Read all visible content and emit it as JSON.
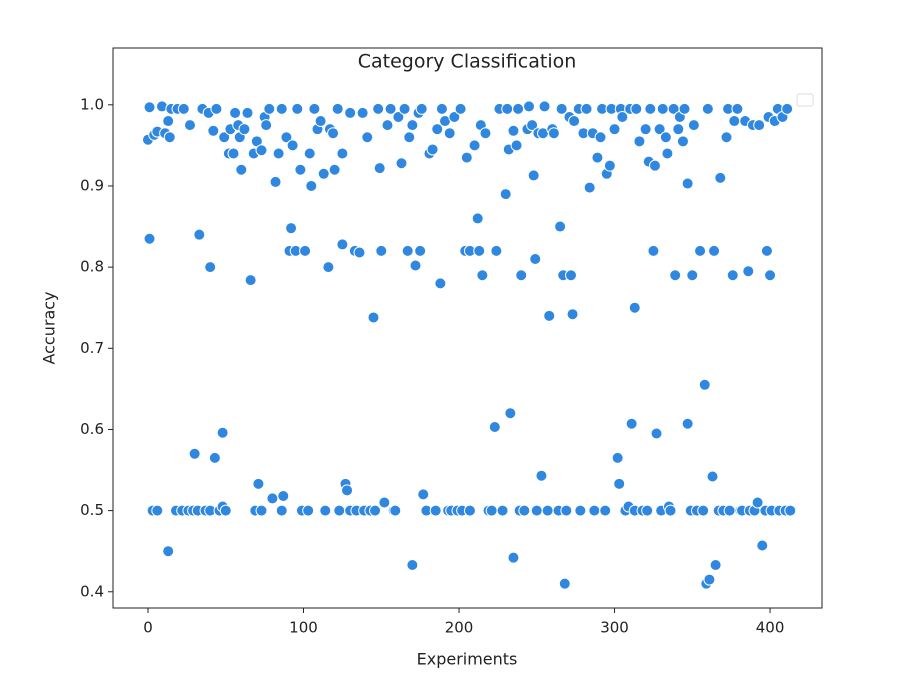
{
  "chart_data": {
    "type": "scatter",
    "title": "Category Classification",
    "xlabel": "Experiments",
    "ylabel": "Accuracy",
    "color": "#2f87e0",
    "xlim": [
      -22.5,
      433.4
    ],
    "ylim": [
      0.38,
      1.07
    ],
    "xticks": [
      0,
      100,
      200,
      300,
      400
    ],
    "yticks": [
      0.4,
      0.5,
      0.6,
      0.7,
      0.8,
      0.9,
      {
        "value": 1,
        "label": "1.0"
      }
    ],
    "x": [
      0,
      1,
      1,
      3,
      4,
      6,
      6,
      9,
      11,
      13,
      13,
      14,
      15,
      18,
      19,
      22,
      23,
      26,
      27,
      29,
      30,
      32,
      33,
      35,
      37,
      39,
      40,
      40,
      42,
      43,
      44,
      46,
      48,
      48,
      49,
      50,
      52,
      53,
      55,
      56,
      58,
      59,
      60,
      62,
      64,
      66,
      68,
      69,
      70,
      71,
      73,
      73,
      75,
      76,
      78,
      80,
      82,
      84,
      86,
      86,
      87,
      89,
      91,
      92,
      93,
      95,
      96,
      98,
      99,
      101,
      103,
      104,
      105,
      107,
      109,
      111,
      113,
      114,
      116,
      117,
      119,
      120,
      122,
      123,
      125,
      125,
      127,
      128,
      130,
      130,
      133,
      134,
      136,
      138,
      139,
      141,
      143,
      145,
      146,
      148,
      149,
      150,
      152,
      154,
      156,
      158,
      159,
      161,
      163,
      165,
      167,
      168,
      170,
      170,
      172,
      174,
      175,
      176,
      177,
      179,
      181,
      183,
      185,
      186,
      188,
      189,
      191,
      193,
      194,
      195,
      197,
      199,
      201,
      202,
      204,
      205,
      207,
      207,
      210,
      212,
      213,
      214,
      215,
      217,
      219,
      221,
      223,
      224,
      226,
      228,
      230,
      231,
      232,
      233,
      235,
      235,
      237,
      238,
      239,
      240,
      242,
      244,
      245,
      247,
      248,
      249,
      250,
      251,
      253,
      254,
      255,
      257,
      258,
      260,
      261,
      264,
      265,
      266,
      267,
      268,
      269,
      271,
      272,
      273,
      274,
      277,
      278,
      280,
      282,
      284,
      286,
      287,
      289,
      291,
      292,
      294,
      295,
      297,
      298,
      300,
      302,
      303,
      304,
      305,
      307,
      309,
      310,
      311,
      313,
      313,
      314,
      316,
      318,
      320,
      321,
      322,
      323,
      325,
      326,
      327,
      329,
      330,
      331,
      333,
      334,
      335,
      336,
      338,
      339,
      341,
      342,
      344,
      345,
      347,
      347,
      349,
      350,
      351,
      353,
      355,
      357,
      358,
      359,
      360,
      361,
      363,
      364,
      365,
      367,
      368,
      370,
      372,
      373,
      374,
      376,
      377,
      379,
      381,
      382,
      384,
      386,
      387,
      389,
      390,
      392,
      393,
      395,
      397,
      398,
      399,
      400,
      401,
      403,
      405,
      406,
      408,
      410,
      411,
      413
    ],
    "y": [
      0.957,
      0.835,
      0.997,
      0.5,
      0.963,
      0.5,
      0.967,
      0.998,
      0.965,
      0.45,
      0.98,
      0.96,
      0.995,
      0.5,
      0.995,
      0.5,
      0.995,
      0.5,
      0.975,
      0.5,
      0.57,
      0.5,
      0.84,
      0.995,
      0.5,
      0.99,
      0.5,
      0.8,
      0.968,
      0.565,
      0.995,
      0.5,
      0.596,
      0.505,
      0.96,
      0.5,
      0.94,
      0.97,
      0.94,
      0.99,
      0.975,
      0.96,
      0.92,
      0.97,
      0.99,
      0.784,
      0.94,
      0.5,
      0.955,
      0.533,
      0.5,
      0.944,
      0.985,
      0.975,
      0.995,
      0.515,
      0.905,
      0.94,
      0.5,
      0.995,
      0.518,
      0.96,
      0.82,
      0.848,
      0.95,
      0.82,
      0.995,
      0.92,
      0.5,
      0.82,
      0.5,
      0.94,
      0.9,
      0.995,
      0.97,
      0.98,
      0.915,
      0.5,
      0.8,
      0.97,
      0.965,
      0.92,
      0.995,
      0.5,
      0.94,
      0.828,
      0.533,
      0.525,
      0.5,
      0.99,
      0.82,
      0.5,
      0.818,
      0.99,
      0.5,
      0.96,
      0.5,
      0.738,
      0.5,
      0.995,
      0.922,
      0.82,
      0.51,
      0.975,
      0.995,
      0.5,
      0.5,
      0.985,
      0.928,
      0.995,
      0.82,
      0.96,
      0.433,
      0.975,
      0.802,
      0.99,
      0.82,
      0.995,
      0.52,
      0.5,
      0.94,
      0.945,
      0.5,
      0.97,
      0.78,
      0.995,
      0.98,
      0.5,
      0.965,
      0.5,
      0.985,
      0.5,
      0.995,
      0.5,
      0.82,
      0.935,
      0.5,
      0.82,
      0.95,
      0.86,
      0.82,
      0.975,
      0.79,
      0.965,
      0.5,
      0.5,
      0.603,
      0.82,
      0.995,
      0.5,
      0.89,
      0.995,
      0.945,
      0.62,
      0.968,
      0.442,
      0.95,
      0.995,
      0.5,
      0.79,
      0.5,
      0.97,
      0.998,
      0.975,
      0.913,
      0.81,
      0.5,
      0.965,
      0.543,
      0.965,
      0.998,
      0.5,
      0.74,
      0.97,
      0.965,
      0.5,
      0.85,
      0.995,
      0.79,
      0.41,
      0.5,
      0.985,
      0.79,
      0.742,
      0.98,
      0.995,
      0.5,
      0.965,
      0.995,
      0.898,
      0.965,
      0.5,
      0.935,
      0.96,
      0.995,
      0.5,
      0.915,
      0.925,
      0.995,
      0.97,
      0.565,
      0.533,
      0.995,
      0.985,
      0.5,
      0.505,
      0.995,
      0.607,
      0.5,
      0.75,
      0.995,
      0.955,
      0.5,
      0.97,
      0.5,
      0.93,
      0.995,
      0.82,
      0.925,
      0.595,
      0.97,
      0.5,
      0.995,
      0.96,
      0.94,
      0.505,
      0.5,
      0.995,
      0.79,
      0.97,
      0.985,
      0.955,
      0.995,
      0.903,
      0.607,
      0.5,
      0.79,
      0.975,
      0.5,
      0.82,
      0.5,
      0.655,
      0.41,
      0.995,
      0.415,
      0.542,
      0.82,
      0.433,
      0.5,
      0.91,
      0.5,
      0.96,
      0.995,
      0.5,
      0.79,
      0.98,
      0.995,
      0.5,
      0.5,
      0.98,
      0.795,
      0.5,
      0.975,
      0.5,
      0.51,
      0.975,
      0.457,
      0.5,
      0.82,
      0.985,
      0.79,
      0.5,
      0.98,
      0.995,
      0.5,
      0.985,
      0.5,
      0.995,
      0.5
    ]
  }
}
